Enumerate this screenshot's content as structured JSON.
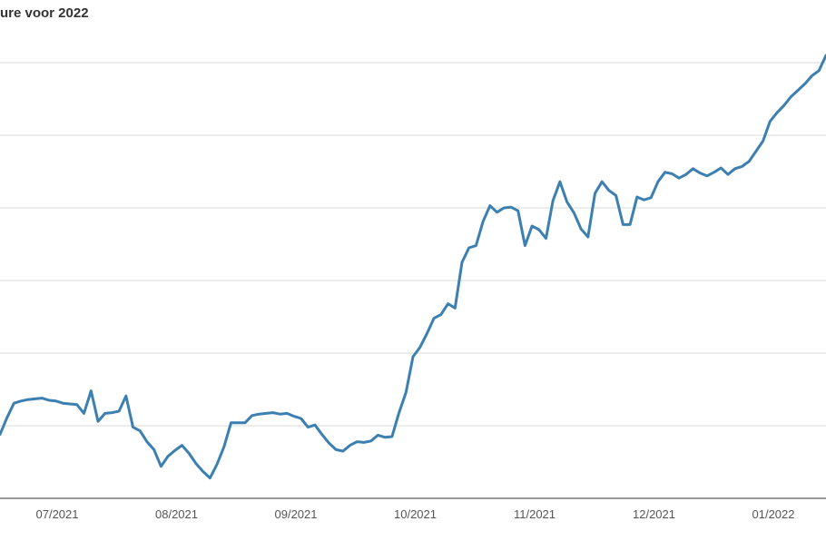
{
  "chart_data": {
    "type": "line",
    "title": "ure voor 2022",
    "xlabel": "",
    "ylabel": "",
    "x_tick_labels": [
      "07/2021",
      "08/2021",
      "09/2021",
      "10/2021",
      "11/2021",
      "12/2021",
      "01/2022"
    ],
    "y_gridlines": 6,
    "grid": true,
    "line_color": "#3c7fb1",
    "grid_color": "#d9d9d9",
    "axis_color": "#333333",
    "series": [
      {
        "values": [
          0.88,
          1.11,
          1.31,
          1.34,
          1.36,
          1.37,
          1.38,
          1.35,
          1.34,
          1.31,
          1.3,
          1.29,
          1.17,
          1.48,
          1.06,
          1.17,
          1.18,
          1.2,
          1.41,
          0.98,
          0.93,
          0.78,
          0.67,
          0.44,
          0.58,
          0.66,
          0.73,
          0.62,
          0.48,
          0.37,
          0.28,
          0.47,
          0.71,
          1.04,
          1.04,
          1.04,
          1.14,
          1.16,
          1.17,
          1.18,
          1.16,
          1.17,
          1.13,
          1.1,
          0.98,
          1.01,
          0.88,
          0.76,
          0.67,
          0.65,
          0.73,
          0.78,
          0.77,
          0.79,
          0.87,
          0.84,
          0.85,
          1.18,
          1.46,
          1.95,
          2.08,
          2.27,
          2.48,
          2.53,
          2.68,
          2.62,
          3.25,
          3.45,
          3.48,
          3.81,
          4.03,
          3.94,
          4.0,
          4.01,
          3.96,
          3.48,
          3.75,
          3.7,
          3.58,
          4.1,
          4.36,
          4.08,
          3.93,
          3.71,
          3.6,
          4.2,
          4.36,
          4.24,
          4.17,
          3.77,
          3.77,
          4.15,
          4.11,
          4.14,
          4.36,
          4.49,
          4.47,
          4.41,
          4.46,
          4.54,
          4.48,
          4.44,
          4.49,
          4.55,
          4.46,
          4.54,
          4.57,
          4.64,
          4.78,
          4.92,
          5.19,
          5.31,
          5.41,
          5.53,
          5.62,
          5.71,
          5.82,
          5.89,
          6.1
        ]
      }
    ]
  }
}
